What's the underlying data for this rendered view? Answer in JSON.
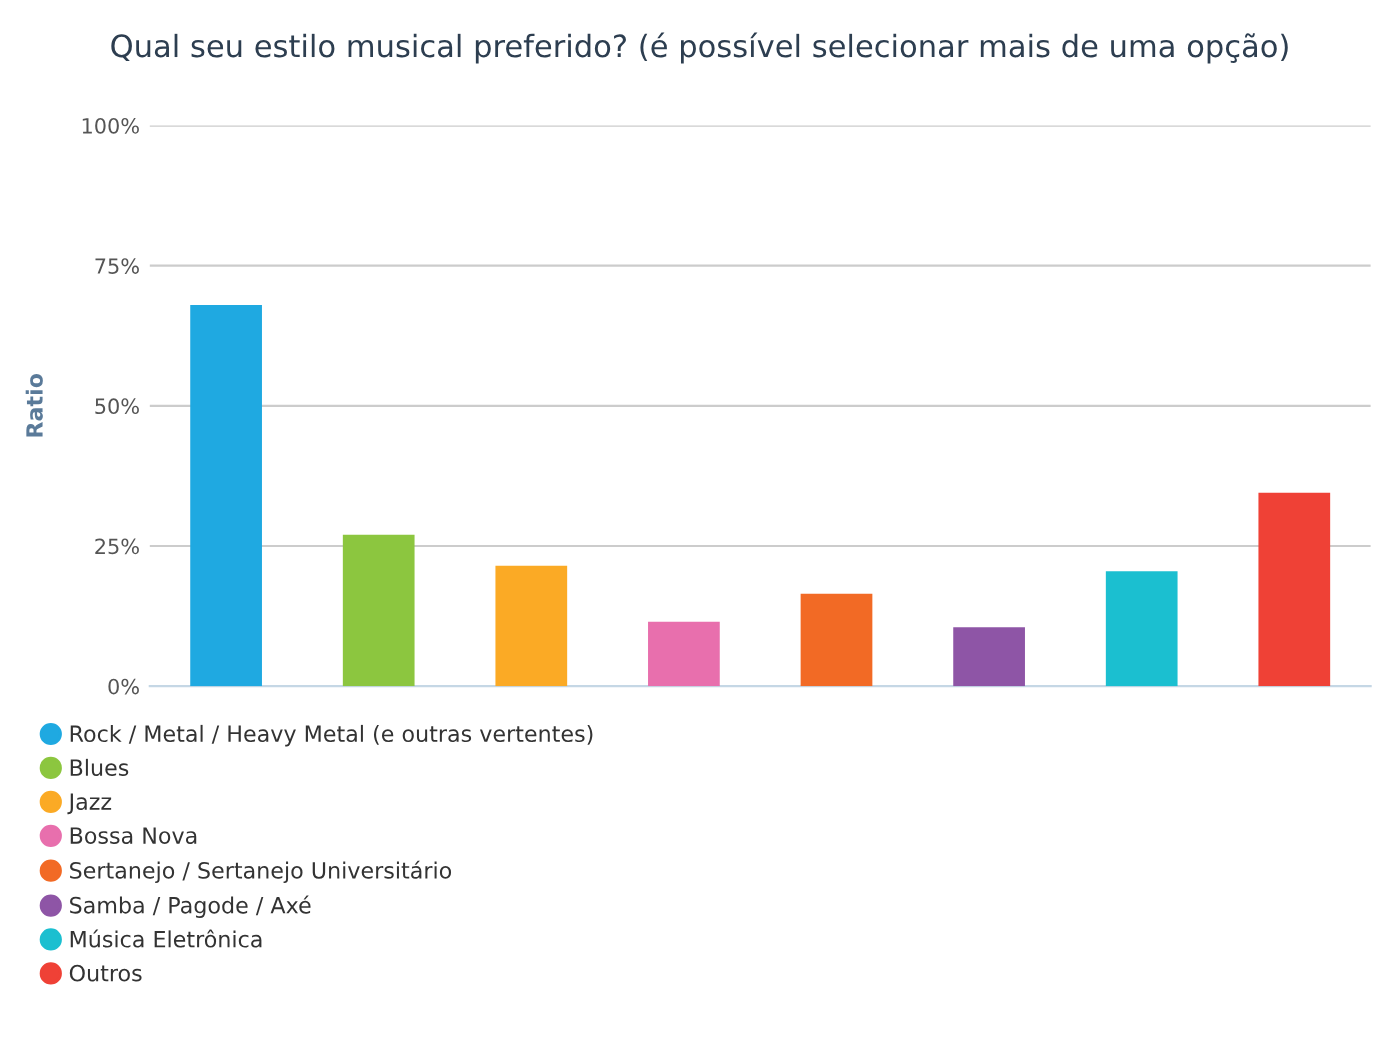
{
  "chart_data": {
    "type": "bar",
    "title": "Qual seu estilo musical preferido? (é possível selecionar mais de uma opção)",
    "ylabel": "Ratio",
    "categories": [
      null,
      null,
      null,
      null,
      null,
      null,
      null,
      null
    ],
    "series": [
      {
        "name": "Rock / Metal / Heavy Metal (e outras vertentes)",
        "color": "#1fa9e1",
        "values": [
          68,
          null,
          null,
          null,
          null,
          null,
          null,
          null
        ]
      },
      {
        "name": "Blues",
        "color": "#8cc63f",
        "values": [
          null,
          27,
          null,
          null,
          null,
          null,
          null,
          null
        ]
      },
      {
        "name": "Jazz",
        "color": "#fbaa25",
        "values": [
          null,
          null,
          21.5,
          null,
          null,
          null,
          null,
          null
        ]
      },
      {
        "name": "Bossa Nova",
        "color": "#e86fad",
        "values": [
          null,
          null,
          null,
          11.5,
          null,
          null,
          null,
          null
        ]
      },
      {
        "name": "Sertanejo / Sertanejo Universitário",
        "color": "#f26a25",
        "values": [
          null,
          null,
          null,
          null,
          16.5,
          null,
          null,
          null
        ]
      },
      {
        "name": "Samba / Pagode / Axé",
        "color": "#8e55a6",
        "values": [
          null,
          null,
          null,
          null,
          null,
          10.5,
          null,
          null
        ]
      },
      {
        "name": "Música Eletrônica",
        "color": "#1bbfd0",
        "values": [
          null,
          null,
          null,
          null,
          null,
          null,
          20.5,
          null
        ]
      },
      {
        "name": "Outros",
        "color": "#ef4136",
        "values": [
          null,
          null,
          null,
          null,
          null,
          null,
          null,
          34.5
        ]
      }
    ],
    "ylim": [
      0,
      100
    ],
    "yticks": [
      {
        "value": 0,
        "label": "0%"
      },
      {
        "value": 25,
        "label": "25%"
      },
      {
        "value": 50,
        "label": "50%"
      },
      {
        "value": 75,
        "label": "75%"
      },
      {
        "value": 100,
        "label": "100%"
      }
    ],
    "grid": "y",
    "legend": "bottom"
  }
}
